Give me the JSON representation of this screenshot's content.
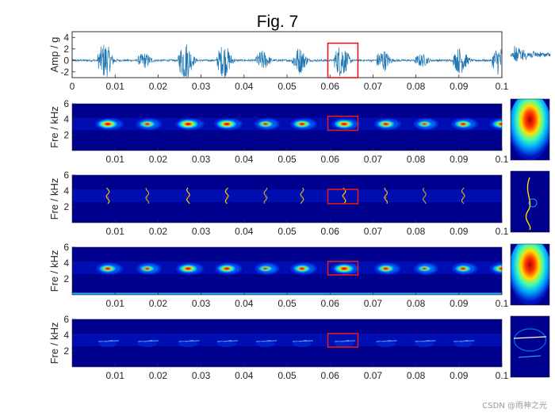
{
  "figure": {
    "title": "Fig. 7",
    "watermark": "CSDN @雨神之光"
  },
  "chart_data": [
    {
      "type": "line",
      "panel": "waveform",
      "ylabel": "Amp / g",
      "xlim": [
        0,
        0.1
      ],
      "ylim": [
        -3,
        5
      ],
      "x_ticks": [
        0,
        0.01,
        0.02,
        0.03,
        0.04,
        0.05,
        0.06,
        0.07,
        0.08,
        0.09,
        0.1
      ],
      "x_tick_labels": [
        "0",
        "0.01",
        "0.02",
        "0.03",
        "0.04",
        "0.05",
        "0.06",
        "0.07",
        "0.08",
        "0.09",
        "0.1"
      ],
      "y_ticks": [
        -2,
        0,
        2,
        4
      ],
      "y_tick_labels": [
        "-2",
        "0",
        "2",
        "4"
      ],
      "impulse_times": [
        0.0068,
        0.016,
        0.0255,
        0.0345,
        0.0435,
        0.052,
        0.0618,
        0.0715,
        0.0805,
        0.0895,
        0.0985
      ],
      "impulse_peak_amplitudes": [
        3.2,
        1.4,
        3.5,
        3.0,
        1.8,
        2.4,
        3.0,
        2.0,
        1.2,
        2.4,
        2.6
      ],
      "highlight_x": [
        0.0595,
        0.0665
      ],
      "highlight_y": [
        -3,
        3
      ],
      "color": "#1f77b4"
    },
    {
      "type": "heatmap",
      "panel": "spectrogram-1",
      "ylabel": "Fre / kHz",
      "xlim": [
        0,
        0.1
      ],
      "ylim": [
        0,
        6
      ],
      "x_ticks": [
        0.01,
        0.02,
        0.03,
        0.04,
        0.05,
        0.06,
        0.07,
        0.08,
        0.09,
        0.1
      ],
      "x_tick_labels": [
        "0.01",
        "0.02",
        "0.03",
        "0.04",
        "0.05",
        "0.06",
        "0.07",
        "0.08",
        "0.09",
        "0.1"
      ],
      "y_ticks": [
        2,
        4,
        6
      ],
      "y_tick_labels": [
        "2",
        "4",
        "6"
      ],
      "blob_times": [
        0.0068,
        0.016,
        0.0255,
        0.0345,
        0.0435,
        0.052,
        0.0618,
        0.0715,
        0.0805,
        0.0895,
        0.0985
      ],
      "blob_frequency_khz": 3.4,
      "blob_strength": [
        0.95,
        0.6,
        1.0,
        0.95,
        0.55,
        0.75,
        0.9,
        0.75,
        0.45,
        0.7,
        0.85
      ],
      "highlight_x": [
        0.0595,
        0.0665
      ],
      "highlight_y": [
        2.6,
        4.4
      ]
    },
    {
      "type": "heatmap",
      "panel": "spectrogram-2",
      "ylabel": "Fre / kHz",
      "xlim": [
        0,
        0.1
      ],
      "ylim": [
        0,
        6
      ],
      "x_ticks": [
        0.01,
        0.02,
        0.03,
        0.04,
        0.05,
        0.06,
        0.07,
        0.08,
        0.09,
        0.1
      ],
      "x_tick_labels": [
        "0.01",
        "0.02",
        "0.03",
        "0.04",
        "0.05",
        "0.06",
        "0.07",
        "0.08",
        "0.09",
        "0.1"
      ],
      "y_ticks": [
        2,
        4,
        6
      ],
      "y_tick_labels": [
        "2",
        "4",
        "6"
      ],
      "ridge_times": [
        0.0068,
        0.016,
        0.0255,
        0.0345,
        0.0435,
        0.052,
        0.0618,
        0.0715,
        0.0805,
        0.0895
      ],
      "ridge_strength": [
        0.8,
        0.5,
        0.9,
        0.85,
        0.5,
        0.6,
        0.9,
        0.7,
        0.4,
        0.55
      ],
      "highlight_x": [
        0.0595,
        0.0665
      ],
      "highlight_y": [
        2.4,
        4.2
      ]
    },
    {
      "type": "heatmap",
      "panel": "spectrogram-3",
      "ylabel": "Fre / kHz",
      "xlim": [
        0,
        0.1
      ],
      "ylim": [
        0,
        6
      ],
      "x_ticks": [
        0.01,
        0.02,
        0.03,
        0.04,
        0.05,
        0.06,
        0.07,
        0.08,
        0.09,
        0.1
      ],
      "x_tick_labels": [
        "0.01",
        "0.02",
        "0.03",
        "0.04",
        "0.05",
        "0.06",
        "0.07",
        "0.08",
        "0.09",
        "0.1"
      ],
      "y_ticks": [
        2,
        4,
        6
      ],
      "y_tick_labels": [
        "2",
        "4",
        "6"
      ],
      "blob_times": [
        0.0068,
        0.016,
        0.0255,
        0.0345,
        0.0435,
        0.052,
        0.0618,
        0.0715,
        0.0805,
        0.0895,
        0.0985
      ],
      "blob_frequency_khz": 3.3,
      "blob_strength": [
        0.7,
        0.5,
        0.85,
        0.8,
        0.45,
        0.7,
        0.95,
        0.7,
        0.4,
        0.6,
        0.8
      ],
      "highlight_x": [
        0.0595,
        0.0665
      ],
      "highlight_y": [
        2.5,
        4.2
      ]
    },
    {
      "type": "heatmap",
      "panel": "spectrogram-4",
      "ylabel": "Fre / kHz",
      "xlim": [
        0,
        0.1
      ],
      "ylim": [
        0,
        6
      ],
      "x_ticks": [
        0.01,
        0.02,
        0.03,
        0.04,
        0.05,
        0.06,
        0.07,
        0.08,
        0.09,
        0.1
      ],
      "x_tick_labels": [
        "0.01",
        "0.02",
        "0.03",
        "0.04",
        "0.05",
        "0.06",
        "0.07",
        "0.08",
        "0.09",
        "0.1"
      ],
      "y_ticks": [
        2,
        4,
        6
      ],
      "y_tick_labels": [
        "2",
        "4",
        "6"
      ],
      "streak_times": [
        0.0068,
        0.016,
        0.0255,
        0.0345,
        0.0435,
        0.052,
        0.0618,
        0.0715,
        0.0805,
        0.0895
      ],
      "streak_frequency_khz": 3.2,
      "highlight_x": [
        0.0595,
        0.0665
      ],
      "highlight_y": [
        2.5,
        4.2
      ]
    }
  ],
  "colors": {
    "signal": "#1f77b4",
    "highlight": "#e31a1c",
    "colormap_low": "#00008f",
    "colormap_high": "#b30000"
  }
}
